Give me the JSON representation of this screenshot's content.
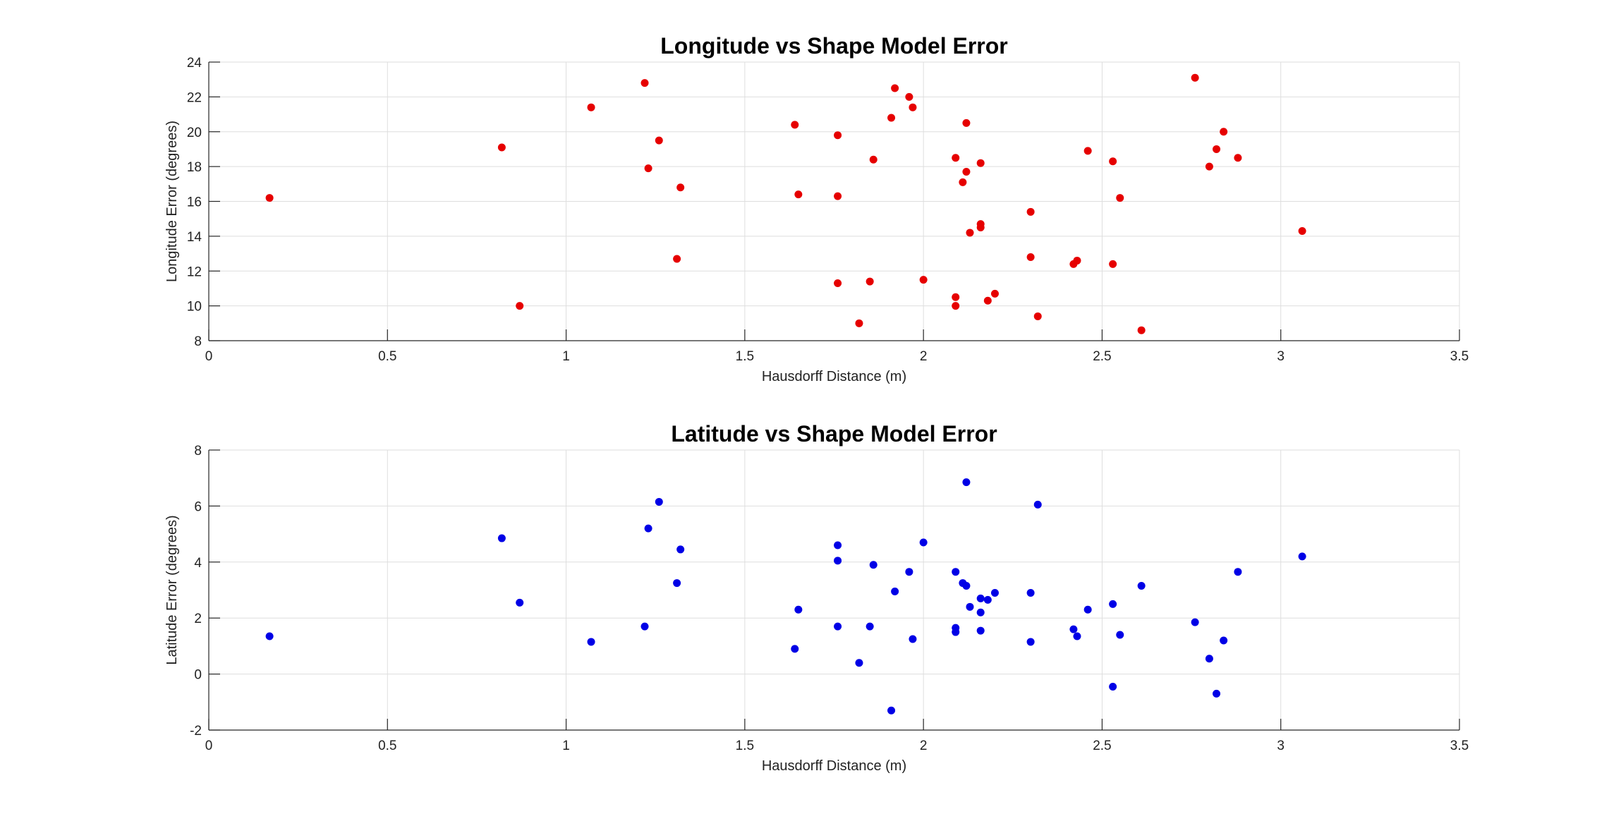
{
  "chart_data": [
    {
      "type": "scatter",
      "title": "Longitude vs Shape Model Error",
      "xlabel": "Hausdorff Distance (m)",
      "ylabel": "Longitude Error (degrees)",
      "xlim": [
        0,
        3.5
      ],
      "ylim": [
        8,
        24
      ],
      "xticks": [
        0,
        0.5,
        1,
        1.5,
        2,
        2.5,
        3,
        3.5
      ],
      "xtick_labels": [
        "0",
        "0.5",
        "1",
        "1.5",
        "2",
        "2.5",
        "3",
        "3.5"
      ],
      "yticks": [
        8,
        10,
        12,
        14,
        16,
        18,
        20,
        22,
        24
      ],
      "ytick_labels": [
        "8",
        "10",
        "12",
        "14",
        "16",
        "18",
        "20",
        "22",
        "24"
      ],
      "grid": true,
      "marker_color": "#e60000",
      "series": [
        {
          "x": [
            0.17,
            0.82,
            0.87,
            1.07,
            1.22,
            1.23,
            1.26,
            1.31,
            1.32,
            1.64,
            1.65,
            1.76,
            1.76,
            1.76,
            1.82,
            1.85,
            1.86,
            1.91,
            1.92,
            1.96,
            1.97,
            2.0,
            2.09,
            2.09,
            2.09,
            2.11,
            2.12,
            2.12,
            2.13,
            2.16,
            2.16,
            2.16,
            2.18,
            2.2,
            2.3,
            2.3,
            2.32,
            2.42,
            2.43,
            2.46,
            2.53,
            2.53,
            2.55,
            2.61,
            2.76,
            2.8,
            2.82,
            2.84,
            2.88,
            3.06
          ],
          "y": [
            16.2,
            19.1,
            10.0,
            21.4,
            22.8,
            17.9,
            19.5,
            12.7,
            16.8,
            20.4,
            16.4,
            19.8,
            16.3,
            11.3,
            9.0,
            11.4,
            18.4,
            20.8,
            22.5,
            22.0,
            21.4,
            11.5,
            10.5,
            18.5,
            10.0,
            17.1,
            20.5,
            17.7,
            14.2,
            14.7,
            18.2,
            14.5,
            10.3,
            10.7,
            12.8,
            15.4,
            9.4,
            12.4,
            12.6,
            18.9,
            12.4,
            18.3,
            16.2,
            8.6,
            23.1,
            18.0,
            19.0,
            20.0,
            18.5,
            14.3
          ]
        }
      ]
    },
    {
      "type": "scatter",
      "title": "Latitude vs Shape Model Error",
      "xlabel": "Hausdorff Distance (m)",
      "ylabel": "Latitude Error (degrees)",
      "xlim": [
        0,
        3.5
      ],
      "ylim": [
        -2,
        8
      ],
      "xticks": [
        0,
        0.5,
        1,
        1.5,
        2,
        2.5,
        3,
        3.5
      ],
      "xtick_labels": [
        "0",
        "0.5",
        "1",
        "1.5",
        "2",
        "2.5",
        "3",
        "3.5"
      ],
      "yticks": [
        -2,
        0,
        2,
        4,
        6,
        8
      ],
      "ytick_labels": [
        "-2",
        "0",
        "2",
        "4",
        "6",
        "8"
      ],
      "grid": true,
      "marker_color": "#0000e6",
      "series": [
        {
          "x": [
            0.17,
            0.82,
            0.87,
            1.07,
            1.22,
            1.23,
            1.26,
            1.31,
            1.32,
            1.64,
            1.65,
            1.76,
            1.76,
            1.76,
            1.82,
            1.85,
            1.86,
            1.91,
            1.92,
            1.96,
            1.97,
            2.0,
            2.09,
            2.09,
            2.09,
            2.11,
            2.12,
            2.12,
            2.13,
            2.16,
            2.16,
            2.16,
            2.18,
            2.2,
            2.3,
            2.3,
            2.32,
            2.42,
            2.43,
            2.46,
            2.53,
            2.53,
            2.55,
            2.61,
            2.76,
            2.8,
            2.82,
            2.84,
            2.88,
            3.06
          ],
          "y": [
            1.35,
            4.85,
            2.55,
            1.15,
            1.7,
            5.2,
            6.15,
            3.25,
            4.45,
            0.9,
            2.3,
            1.7,
            4.6,
            4.05,
            0.4,
            1.7,
            3.9,
            -1.3,
            2.95,
            3.65,
            1.25,
            4.7,
            3.65,
            1.5,
            1.65,
            3.25,
            6.85,
            3.15,
            2.4,
            2.7,
            1.55,
            2.2,
            2.65,
            2.9,
            1.15,
            2.9,
            6.05,
            1.6,
            1.35,
            2.3,
            2.5,
            -0.45,
            1.4,
            3.15,
            1.85,
            0.55,
            -0.7,
            1.2,
            3.65,
            4.2
          ]
        }
      ]
    }
  ]
}
